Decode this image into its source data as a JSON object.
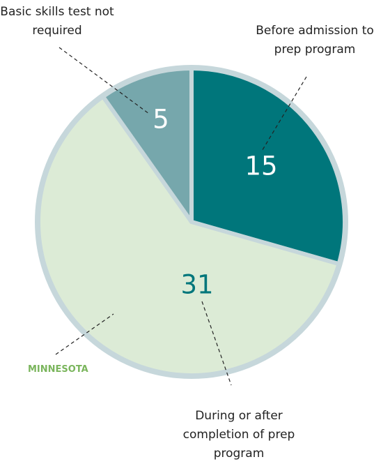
{
  "chart_data": {
    "type": "pie",
    "categories": [
      "Before admission to prep program",
      "During or after completion of prep program",
      "Basic skills test not required"
    ],
    "values": [
      15,
      31,
      5
    ],
    "colors": [
      "#00767b",
      "#dcebd6",
      "#76a7ac"
    ],
    "label_colors": [
      "#ffffff",
      "#00767b",
      "#ffffff"
    ],
    "annotation": "MINNESOTA"
  }
}
